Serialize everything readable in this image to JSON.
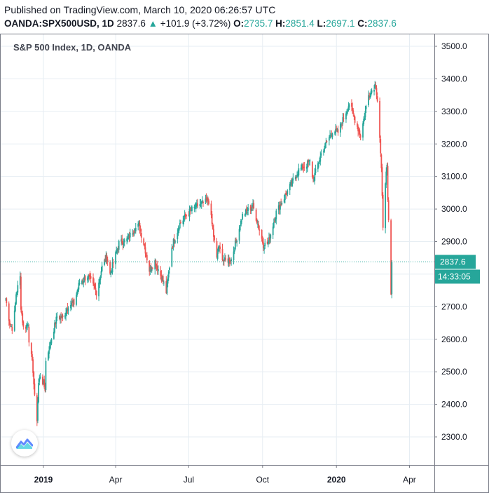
{
  "header": {
    "published": "Published on TradingView.com, March 10, 2020 06:26:57 UTC",
    "symbol": "OANDA:SPX500USD, 1D",
    "last": "2837.6",
    "up_arrow": "▲",
    "change": "+101.9 (+3.72%)",
    "o_label": "O:",
    "o_value": "2735.7",
    "h_label": "H:",
    "h_value": "2851.4",
    "l_label": "L:",
    "l_value": "2697.1",
    "c_label": "C:",
    "c_value": "2837.6"
  },
  "logo_icon": "tradingview-logo-icon",
  "chart_data": {
    "type": "candlestick",
    "title": "S&P 500 Index, 1D, OANDA",
    "ylim": [
      2240,
      3530
    ],
    "y_ticks": [
      "3500.0",
      "3400.0",
      "3300.0",
      "3200.0",
      "3100.0",
      "3000.0",
      "2900.0",
      "2800.0",
      "2700.0",
      "2600.0",
      "2500.0",
      "2400.0",
      "2300.0"
    ],
    "x_ticks": [
      {
        "label": "2019",
        "date": "2019-01-01",
        "bold": true
      },
      {
        "label": "Apr",
        "date": "2019-04-01",
        "bold": false
      },
      {
        "label": "Jul",
        "date": "2019-07-01",
        "bold": false
      },
      {
        "label": "Oct",
        "date": "2019-10-01",
        "bold": false
      },
      {
        "label": "2020",
        "date": "2020-01-01",
        "bold": true
      },
      {
        "label": "Apr",
        "date": "2020-04-01",
        "bold": false
      }
    ],
    "x_range": [
      "2018-11-14",
      "2020-05-02"
    ],
    "price_line": 2837.6,
    "price_badge": "2837.6",
    "countdown": "14:33:05",
    "colors": {
      "up": "#26a69a",
      "down": "#ef5350",
      "grid": "#e6edf3",
      "price_line": "#26a69a"
    },
    "closes": [
      {
        "date": "2018-11-15",
        "close": 2725
      },
      {
        "date": "2018-11-20",
        "close": 2650
      },
      {
        "date": "2018-11-23",
        "close": 2635
      },
      {
        "date": "2018-11-26",
        "close": 2680
      },
      {
        "date": "2018-11-28",
        "close": 2740
      },
      {
        "date": "2018-11-30",
        "close": 2760
      },
      {
        "date": "2018-12-03",
        "close": 2790
      },
      {
        "date": "2018-12-04",
        "close": 2700
      },
      {
        "date": "2018-12-07",
        "close": 2635
      },
      {
        "date": "2018-12-10",
        "close": 2640
      },
      {
        "date": "2018-12-13",
        "close": 2650
      },
      {
        "date": "2018-12-14",
        "close": 2600
      },
      {
        "date": "2018-12-17",
        "close": 2545
      },
      {
        "date": "2018-12-19",
        "close": 2505
      },
      {
        "date": "2018-12-21",
        "close": 2420
      },
      {
        "date": "2018-12-24",
        "close": 2355
      },
      {
        "date": "2018-12-26",
        "close": 2465
      },
      {
        "date": "2018-12-28",
        "close": 2490
      },
      {
        "date": "2019-01-03",
        "close": 2448
      },
      {
        "date": "2019-01-04",
        "close": 2532
      },
      {
        "date": "2019-01-10",
        "close": 2595
      },
      {
        "date": "2019-01-18",
        "close": 2670
      },
      {
        "date": "2019-01-25",
        "close": 2665
      },
      {
        "date": "2019-02-01",
        "close": 2705
      },
      {
        "date": "2019-02-08",
        "close": 2710
      },
      {
        "date": "2019-02-15",
        "close": 2775
      },
      {
        "date": "2019-02-25",
        "close": 2795
      },
      {
        "date": "2019-03-08",
        "close": 2745
      },
      {
        "date": "2019-03-15",
        "close": 2822
      },
      {
        "date": "2019-03-21",
        "close": 2855
      },
      {
        "date": "2019-03-25",
        "close": 2800
      },
      {
        "date": "2019-04-05",
        "close": 2895
      },
      {
        "date": "2019-04-15",
        "close": 2905
      },
      {
        "date": "2019-04-23",
        "close": 2935
      },
      {
        "date": "2019-04-30",
        "close": 2950
      },
      {
        "date": "2019-05-07",
        "close": 2885
      },
      {
        "date": "2019-05-13",
        "close": 2812
      },
      {
        "date": "2019-05-20",
        "close": 2840
      },
      {
        "date": "2019-05-29",
        "close": 2785
      },
      {
        "date": "2019-06-03",
        "close": 2745
      },
      {
        "date": "2019-06-10",
        "close": 2885
      },
      {
        "date": "2019-06-20",
        "close": 2955
      },
      {
        "date": "2019-07-03",
        "close": 2995
      },
      {
        "date": "2019-07-15",
        "close": 3015
      },
      {
        "date": "2019-07-26",
        "close": 3025
      },
      {
        "date": "2019-08-05",
        "close": 2845
      },
      {
        "date": "2019-08-07",
        "close": 2885
      },
      {
        "date": "2019-08-14",
        "close": 2840
      },
      {
        "date": "2019-08-23",
        "close": 2845
      },
      {
        "date": "2019-09-06",
        "close": 2980
      },
      {
        "date": "2019-09-19",
        "close": 3010
      },
      {
        "date": "2019-10-02",
        "close": 2890
      },
      {
        "date": "2019-10-08",
        "close": 2895
      },
      {
        "date": "2019-10-18",
        "close": 2990
      },
      {
        "date": "2019-10-30",
        "close": 3045
      },
      {
        "date": "2019-11-15",
        "close": 3120
      },
      {
        "date": "2019-11-29",
        "close": 3145
      },
      {
        "date": "2019-12-03",
        "close": 3090
      },
      {
        "date": "2019-12-13",
        "close": 3170
      },
      {
        "date": "2019-12-27",
        "close": 3240
      },
      {
        "date": "2020-01-03",
        "close": 3235
      },
      {
        "date": "2020-01-17",
        "close": 3325
      },
      {
        "date": "2020-01-31",
        "close": 3225
      },
      {
        "date": "2020-02-10",
        "close": 3350
      },
      {
        "date": "2020-02-19",
        "close": 3385
      },
      {
        "date": "2020-02-21",
        "close": 3335
      },
      {
        "date": "2020-02-24",
        "close": 3220
      },
      {
        "date": "2020-02-26",
        "close": 3115
      },
      {
        "date": "2020-02-28",
        "close": 2950
      },
      {
        "date": "2020-03-02",
        "close": 3090
      },
      {
        "date": "2020-03-04",
        "close": 3125
      },
      {
        "date": "2020-03-05",
        "close": 3020
      },
      {
        "date": "2020-03-06",
        "close": 2960
      },
      {
        "date": "2020-03-09",
        "close": 2736
      },
      {
        "date": "2020-03-10",
        "close": 2837.6
      }
    ]
  }
}
